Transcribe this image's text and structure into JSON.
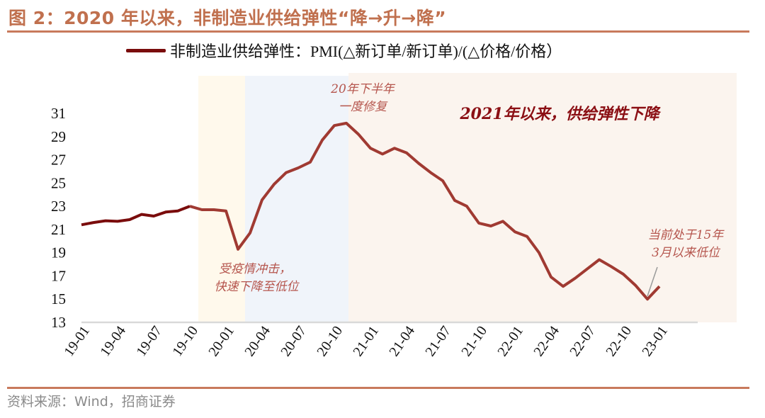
{
  "title": "图 2：2020 年以来，非制造业供给弹性“降→升→降”",
  "source": "资料来源：Wind，招商证券",
  "colors": {
    "line": "#a03a32",
    "legend_line": "#7a0c0c",
    "title": "#c0704e",
    "band_covid": "#fff9ec",
    "band_recovery": "#f0f4fa",
    "band_decline": "#fbf4ee",
    "annotation": "#b5554d",
    "annotation_main": "#8b0f14"
  },
  "chart_data": {
    "type": "line",
    "title": "",
    "xlabel": "",
    "ylabel": "",
    "ylim": [
      13,
      31
    ],
    "yticks": [
      13,
      15,
      17,
      19,
      21,
      23,
      25,
      27,
      29,
      31
    ],
    "grid": false,
    "legend_position": "top",
    "x": [
      "19-01",
      "19-02",
      "19-03",
      "19-04",
      "19-05",
      "19-06",
      "19-07",
      "19-08",
      "19-09",
      "19-10",
      "19-11",
      "19-12",
      "20-01",
      "20-02",
      "20-03",
      "20-04",
      "20-05",
      "20-06",
      "20-07",
      "20-08",
      "20-09",
      "20-10",
      "20-11",
      "20-12",
      "21-01",
      "21-02",
      "21-03",
      "21-04",
      "21-05",
      "21-06",
      "21-07",
      "21-08",
      "21-09",
      "21-10",
      "21-11",
      "21-12",
      "22-01",
      "22-02",
      "22-03",
      "22-04",
      "22-05",
      "22-06",
      "22-07",
      "22-08",
      "22-09",
      "22-10",
      "22-11",
      "22-12",
      "23-01"
    ],
    "xtick_labels": [
      "19-01",
      "19-04",
      "19-07",
      "19-10",
      "20-01",
      "20-04",
      "20-07",
      "20-10",
      "21-01",
      "21-04",
      "21-07",
      "21-10",
      "22-01",
      "22-04",
      "22-07",
      "22-10",
      "23-01"
    ],
    "series": [
      {
        "name": "非制造业供给弹性：PMI(△新订单/新订单)/(△价格/价格）",
        "values": [
          21.4,
          21.6,
          21.75,
          21.7,
          21.85,
          22.3,
          22.15,
          22.5,
          22.6,
          23.0,
          22.7,
          22.7,
          22.6,
          19.3,
          20.7,
          23.55,
          24.9,
          25.9,
          26.3,
          26.8,
          28.7,
          29.95,
          30.15,
          29.2,
          28.0,
          27.5,
          28.0,
          27.6,
          26.7,
          25.9,
          25.2,
          23.5,
          23.0,
          21.55,
          21.3,
          21.7,
          20.8,
          20.4,
          19.0,
          16.9,
          16.1,
          16.8,
          17.6,
          18.4,
          17.8,
          17.15,
          16.2,
          15.0,
          16.1
        ]
      }
    ],
    "annotations": {
      "covid": [
        "受疫情冲击，",
        "快速下降至低位"
      ],
      "recovery": [
        "20年下半年",
        "一度修复"
      ],
      "decline": "2021年以来，供给弹性下降",
      "current": [
        "当前处于15年",
        "3月以来低位"
      ]
    }
  }
}
